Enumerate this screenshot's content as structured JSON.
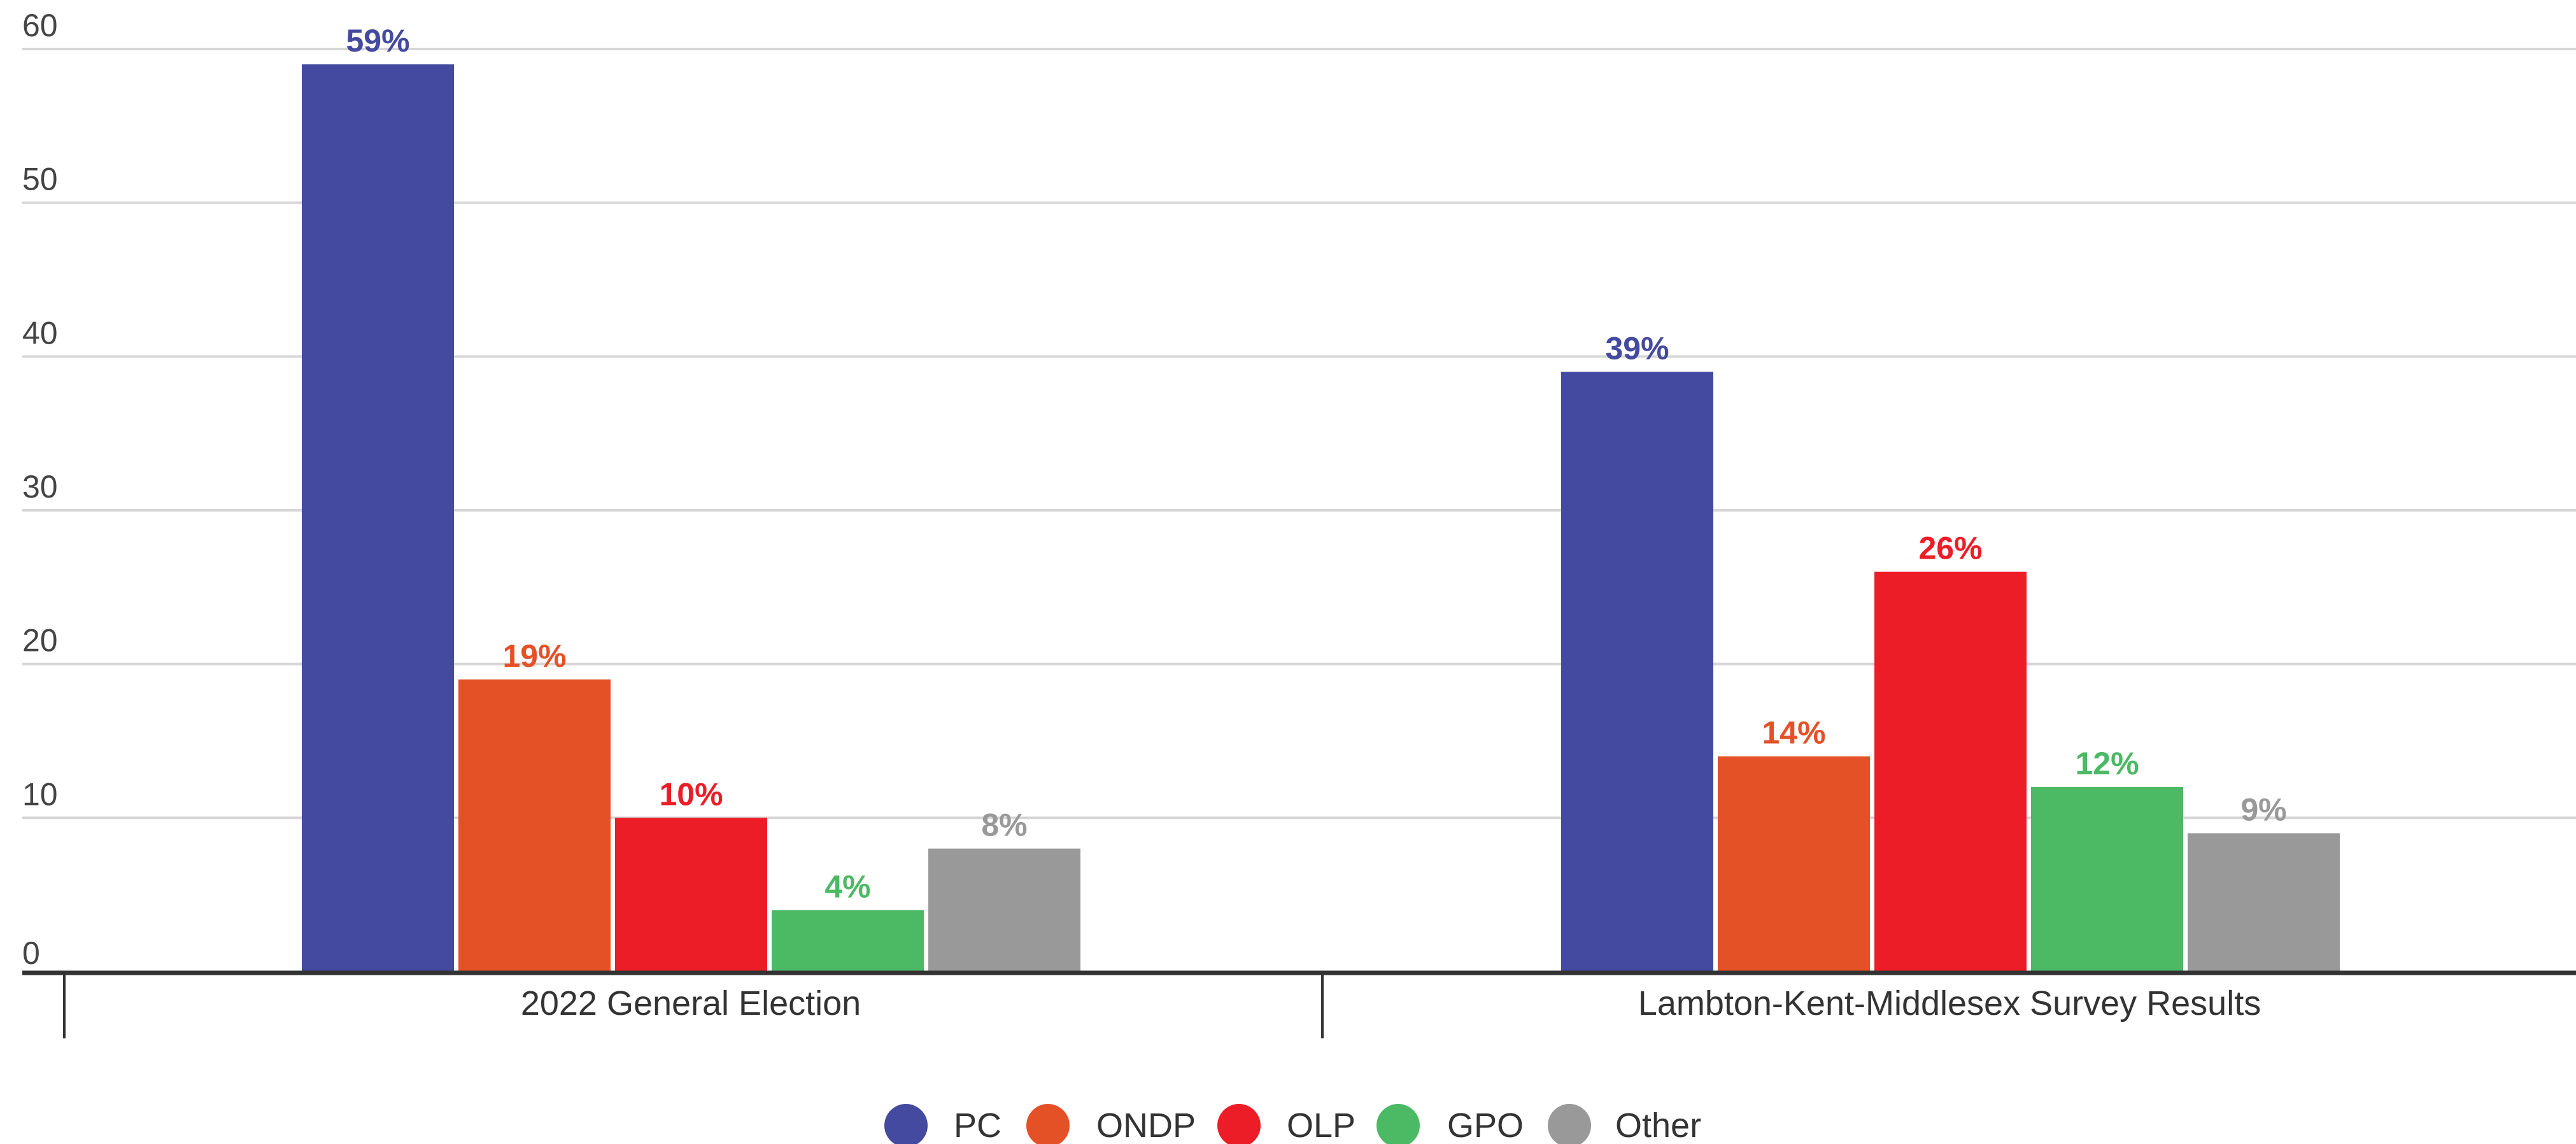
{
  "chart_data": {
    "type": "bar",
    "categories": [
      "2022 General Election",
      "Lambton-Kent-Middlesex Survey Results"
    ],
    "series": [
      {
        "name": "PC",
        "values": [
          59,
          39
        ],
        "labels": [
          "59%",
          "39%"
        ]
      },
      {
        "name": "ONDP",
        "values": [
          19,
          14
        ],
        "labels": [
          "19%",
          "14%"
        ]
      },
      {
        "name": "OLP",
        "values": [
          10,
          26
        ],
        "labels": [
          "10%",
          "26%"
        ]
      },
      {
        "name": "GPO",
        "values": [
          4,
          12
        ],
        "labels": [
          "4%",
          "12%"
        ]
      },
      {
        "name": "Other",
        "values": [
          8,
          9
        ],
        "labels": [
          "8%",
          "9%"
        ]
      }
    ],
    "yticks": [
      "0",
      "10",
      "20",
      "30",
      "40",
      "50",
      "60"
    ],
    "ylim": [
      0,
      60
    ],
    "grid": true,
    "legend_position": "bottom-center",
    "title": "",
    "xlabel": "",
    "ylabel": ""
  },
  "colors": {
    "PC": "#444a9f",
    "ONDP": "#e55126",
    "OLP": "#ec1d27",
    "GPO": "#4cb965",
    "Other": "#999999",
    "grid": "#d6d6d6",
    "axis": "#333333"
  }
}
